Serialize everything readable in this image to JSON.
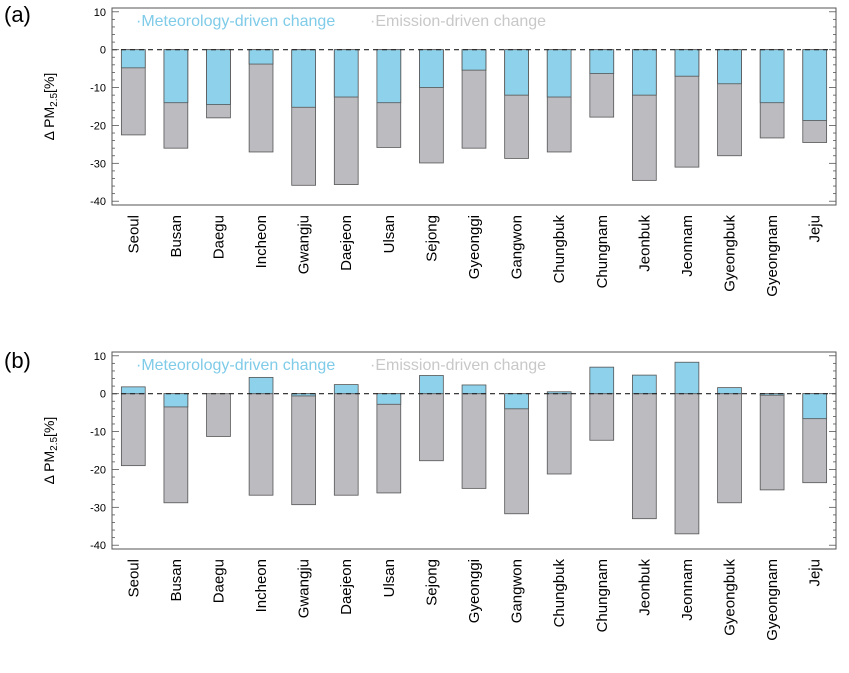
{
  "chart_data": [
    {
      "panel_label": "(a)",
      "type": "bar",
      "subtype": "overlapping",
      "ylabel": "Δ PM",
      "ylabel_sub": "2.5",
      "ylabel_unit": "[%]",
      "ylim": [
        -41,
        11
      ],
      "yticks": [
        10,
        0,
        -10,
        -20,
        -30,
        -40
      ],
      "categories": [
        "Seoul",
        "Busan",
        "Daegu",
        "Incheon",
        "Gwangju",
        "Daejeon",
        "Ulsan",
        "Sejong",
        "Gyeonggi",
        "Gangwon",
        "Chungbuk",
        "Chungnam",
        "Jeonbuk",
        "Jeonnam",
        "Gyeongbuk",
        "Gyeongnam",
        "Jeju"
      ],
      "legend": [
        "Meteorology-driven change",
        "Emission-driven change"
      ],
      "legend_colors": [
        "#8ed1ea",
        "#bcbbc0"
      ],
      "series": [
        {
          "name": "Emission-driven change",
          "values": [
            -22.5,
            -26.0,
            -18.0,
            -27.0,
            -35.8,
            -35.6,
            -25.8,
            -29.9,
            -26.0,
            -28.7,
            -27.0,
            -17.8,
            -34.5,
            -31.0,
            -28.0,
            -23.3,
            -24.5
          ]
        },
        {
          "name": "Meteorology-driven change",
          "values": [
            -4.8,
            -14.0,
            -14.5,
            -3.8,
            -15.2,
            -12.5,
            -14.0,
            -10.0,
            -5.4,
            -12.0,
            -12.5,
            -6.3,
            -12.0,
            -7.0,
            -9.0,
            -14.0,
            -18.7
          ]
        }
      ]
    },
    {
      "panel_label": "(b)",
      "type": "bar",
      "subtype": "overlapping",
      "ylabel": "Δ PM",
      "ylabel_sub": "2.5",
      "ylabel_unit": "[%]",
      "ylim": [
        -41,
        11
      ],
      "yticks": [
        10,
        0,
        -10,
        -20,
        -30,
        -40
      ],
      "categories": [
        "Seoul",
        "Busan",
        "Daegu",
        "Incheon",
        "Gwangju",
        "Daejeon",
        "Ulsan",
        "Sejong",
        "Gyeonggi",
        "Gangwon",
        "Chungbuk",
        "Chungnam",
        "Jeonbuk",
        "Jeonnam",
        "Gyeongbuk",
        "Gyeongnam",
        "Jeju"
      ],
      "legend": [
        "Meteorology-driven change",
        "Emission-driven change"
      ],
      "legend_colors": [
        "#8ed1ea",
        "#bcbbc0"
      ],
      "series": [
        {
          "name": "Emission-driven change",
          "values": [
            -19.0,
            -28.8,
            -11.3,
            -26.8,
            -29.3,
            -26.8,
            -26.2,
            -17.7,
            -25.0,
            -31.7,
            -21.2,
            -12.3,
            -33.0,
            -37.0,
            -28.8,
            -25.4,
            -23.5
          ]
        },
        {
          "name": "Meteorology-driven change",
          "values": [
            1.8,
            -3.5,
            0,
            4.3,
            -0.6,
            2.4,
            -2.8,
            4.8,
            2.3,
            -4.0,
            0.5,
            7.0,
            4.9,
            8.3,
            1.6,
            -0.4,
            -6.6
          ]
        }
      ]
    }
  ]
}
